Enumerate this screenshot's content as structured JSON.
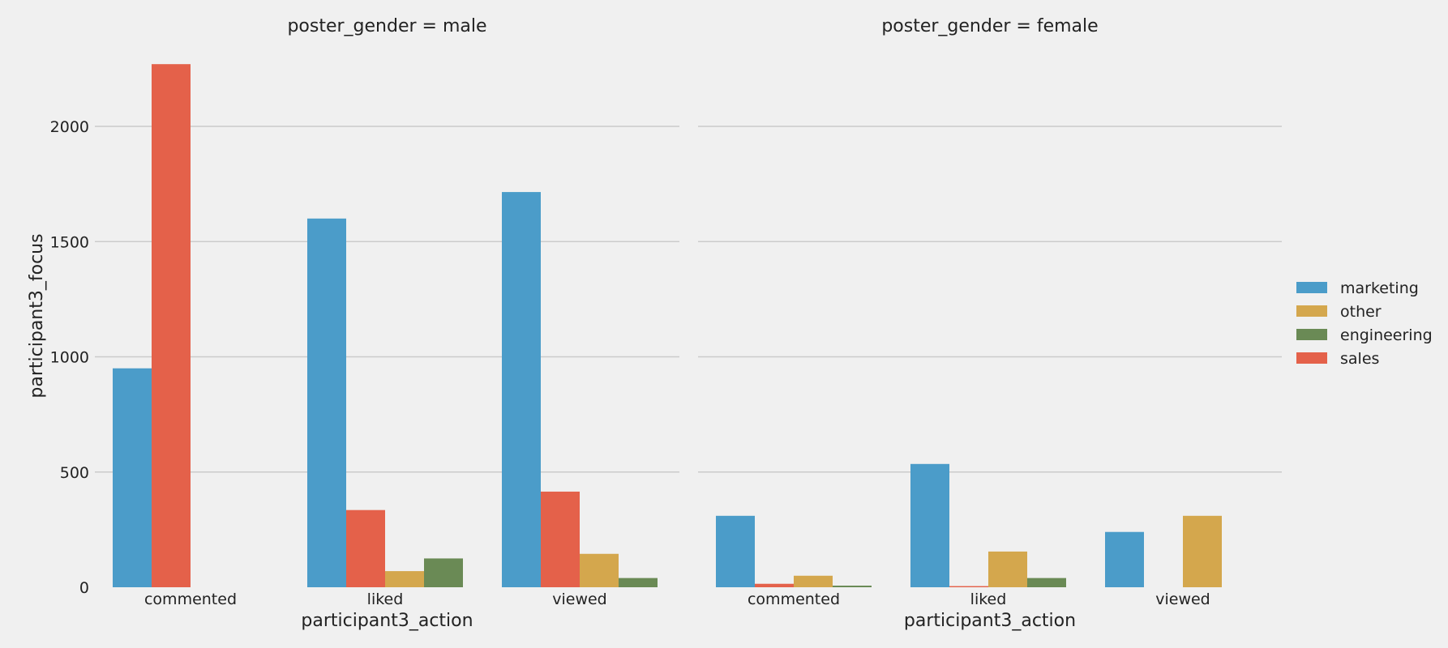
{
  "chart_data": {
    "type": "bar",
    "ylabel": "participant3_focus",
    "xlabel": "participant3_action",
    "ylim": [
      0,
      2300
    ],
    "yticks": [
      0,
      500,
      1000,
      1500,
      2000
    ],
    "grid": true,
    "legend_position": "right",
    "categories": [
      "commented",
      "liked",
      "viewed"
    ],
    "legend": [
      {
        "name": "marketing",
        "color": "#4b9cc9"
      },
      {
        "name": "other",
        "color": "#d4a74d"
      },
      {
        "name": "engineering",
        "color": "#6a8a55"
      },
      {
        "name": "sales",
        "color": "#e4614a"
      }
    ],
    "panels": [
      {
        "title": "poster_gender = male",
        "groups": [
          {
            "category": "commented",
            "bars": [
              {
                "series": "marketing",
                "value": 950
              },
              {
                "series": "sales",
                "value": 2270
              }
            ]
          },
          {
            "category": "liked",
            "bars": [
              {
                "series": "marketing",
                "value": 1600
              },
              {
                "series": "sales",
                "value": 335
              },
              {
                "series": "other",
                "value": 70
              },
              {
                "series": "engineering",
                "value": 125
              }
            ]
          },
          {
            "category": "viewed",
            "bars": [
              {
                "series": "marketing",
                "value": 1715
              },
              {
                "series": "sales",
                "value": 415
              },
              {
                "series": "other",
                "value": 145
              },
              {
                "series": "engineering",
                "value": 40
              }
            ]
          }
        ]
      },
      {
        "title": "poster_gender = female",
        "groups": [
          {
            "category": "commented",
            "bars": [
              {
                "series": "marketing",
                "value": 310
              },
              {
                "series": "sales",
                "value": 15
              },
              {
                "series": "other",
                "value": 50
              },
              {
                "series": "engineering",
                "value": 7
              }
            ]
          },
          {
            "category": "liked",
            "bars": [
              {
                "series": "marketing",
                "value": 535
              },
              {
                "series": "sales",
                "value": 5
              },
              {
                "series": "other",
                "value": 155
              },
              {
                "series": "engineering",
                "value": 40
              }
            ]
          },
          {
            "category": "viewed",
            "bars": [
              {
                "series": "marketing",
                "value": 240
              },
              {
                "series": "sales",
                "value": 0
              },
              {
                "series": "other",
                "value": 310
              },
              {
                "series": "engineering",
                "value": 0
              }
            ]
          }
        ]
      }
    ]
  }
}
